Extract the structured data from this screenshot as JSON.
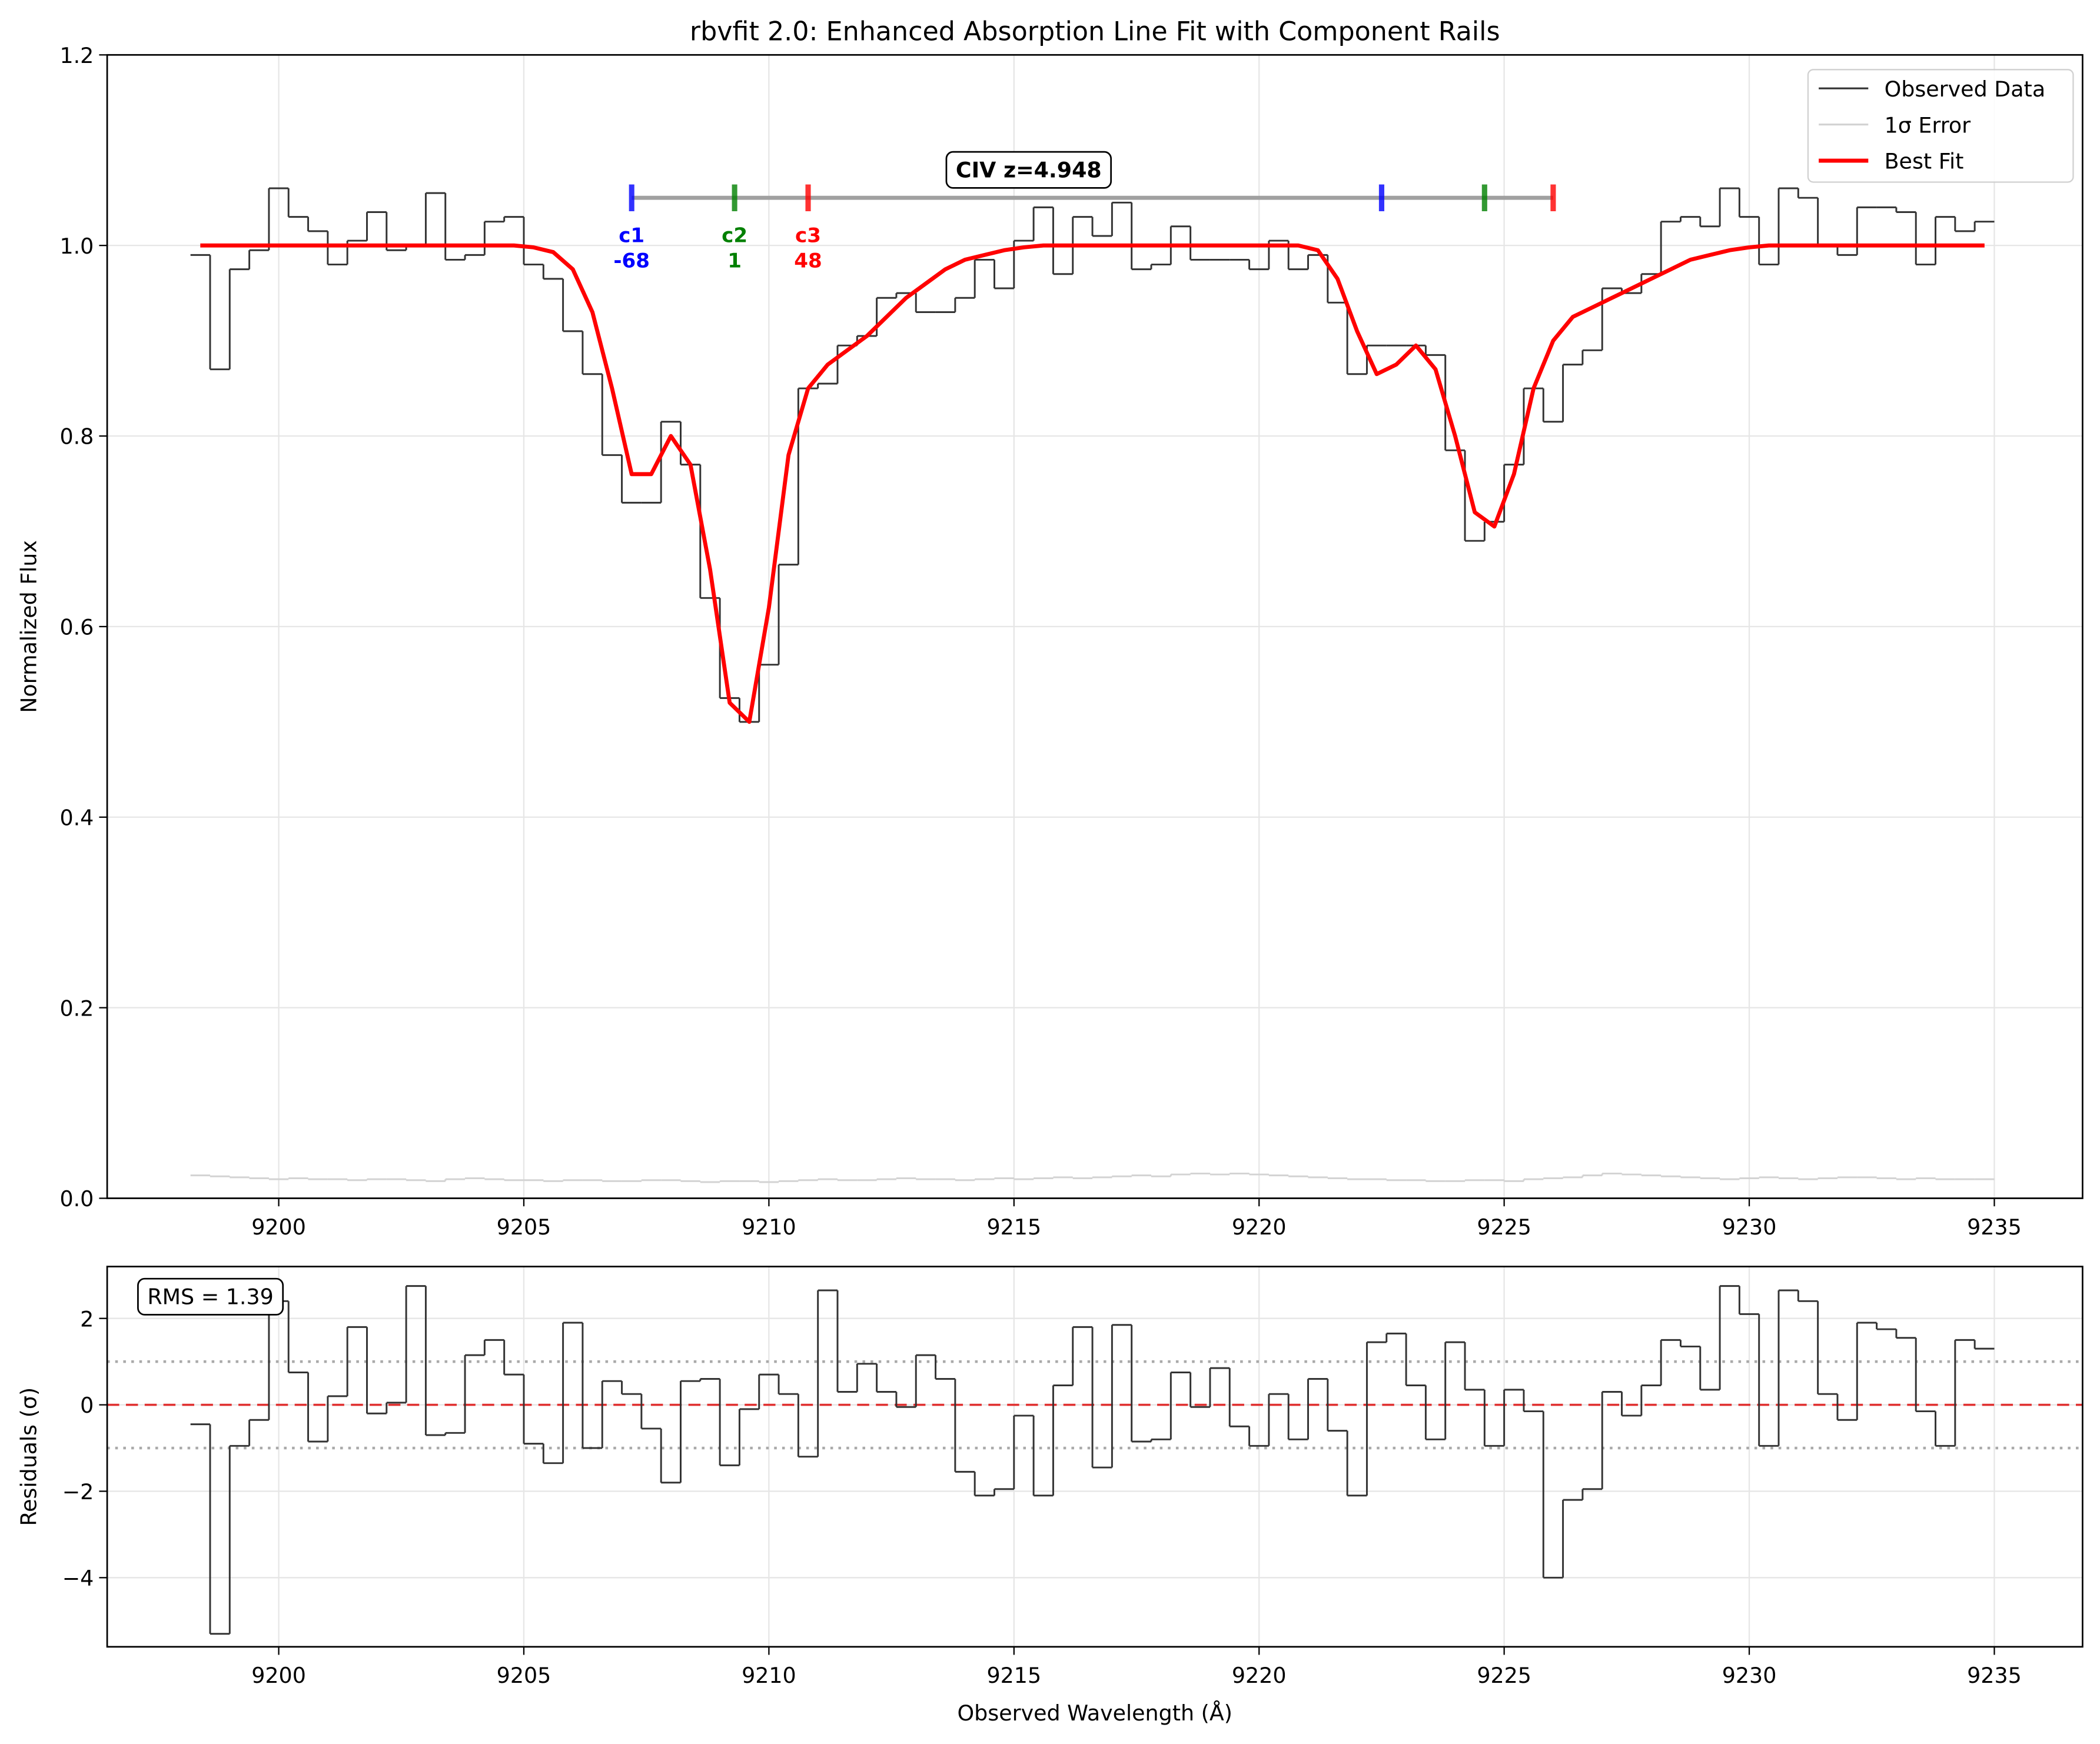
{
  "chart_data": [
    {
      "type": "line",
      "title": "rbvfit 2.0: Enhanced Absorption Line Fit with Component Rails",
      "ylabel": "Normalized Flux",
      "xlim": [
        9196.5,
        9236.8
      ],
      "xticks": [
        9200,
        9205,
        9210,
        9215,
        9220,
        9225,
        9230,
        9235
      ],
      "ylim": [
        0,
        1.2
      ],
      "yticks": [
        {
          "value": 0,
          "label": "0.0"
        },
        0.2,
        0.4,
        0.6,
        0.8,
        {
          "value": 1,
          "label": "1.0"
        },
        1.2
      ],
      "grid": true,
      "legend": "upper right",
      "x": [
        9198.4,
        9198.8,
        9199.2,
        9199.6,
        9200.0,
        9200.4,
        9200.8,
        9201.2,
        9201.6,
        9202.0,
        9202.4,
        9202.8,
        9203.2,
        9203.6,
        9204.0,
        9204.4,
        9204.8,
        9205.2,
        9205.6,
        9206.0,
        9206.4,
        9206.8,
        9207.2,
        9207.6,
        9208.0,
        9208.4,
        9208.8,
        9209.2,
        9209.6,
        9210.0,
        9210.4,
        9210.8,
        9211.2,
        9211.6,
        9212.0,
        9212.4,
        9212.8,
        9213.2,
        9213.6,
        9214.0,
        9214.4,
        9214.8,
        9215.2,
        9215.6,
        9216.0,
        9216.4,
        9216.8,
        9217.2,
        9217.6,
        9218.0,
        9218.4,
        9218.8,
        9219.2,
        9219.6,
        9220.0,
        9220.4,
        9220.8,
        9221.2,
        9221.6,
        9222.0,
        9222.4,
        9222.8,
        9223.2,
        9223.6,
        9224.0,
        9224.4,
        9224.8,
        9225.2,
        9225.6,
        9226.0,
        9226.4,
        9226.8,
        9227.2,
        9227.6,
        9228.0,
        9228.4,
        9228.8,
        9229.2,
        9229.6,
        9230.0,
        9230.4,
        9230.8,
        9231.2,
        9231.6,
        9232.0,
        9232.4,
        9232.8,
        9233.2,
        9233.6,
        9234.0,
        9234.4,
        9234.8
      ],
      "series": [
        {
          "name": "Observed Data",
          "color": "#333333",
          "style": "step",
          "values": [
            0.99,
            0.87,
            0.975,
            0.995,
            1.06,
            1.03,
            1.015,
            0.98,
            1.005,
            1.035,
            0.995,
            1.0,
            1.055,
            0.985,
            0.99,
            1.025,
            1.03,
            0.98,
            0.965,
            0.91,
            0.865,
            0.78,
            0.73,
            0.73,
            0.815,
            0.77,
            0.63,
            0.525,
            0.5,
            0.56,
            0.665,
            0.85,
            0.855,
            0.895,
            0.905,
            0.945,
            0.95,
            0.93,
            0.93,
            0.945,
            0.985,
            0.955,
            1.005,
            1.04,
            0.97,
            1.03,
            1.01,
            1.045,
            0.975,
            0.98,
            1.02,
            0.985,
            0.985,
            0.985,
            0.975,
            1.005,
            0.975,
            0.99,
            0.94,
            0.865,
            0.895,
            0.895,
            0.895,
            0.885,
            0.785,
            0.69,
            0.71,
            0.77,
            0.85,
            0.815,
            0.875,
            0.89,
            0.955,
            0.95,
            0.97,
            1.025,
            1.03,
            1.02,
            1.06,
            1.03,
            0.98,
            1.06,
            1.05,
            1.0,
            0.99,
            1.04,
            1.04,
            1.035,
            0.98,
            1.03,
            1.015,
            1.025
          ]
        },
        {
          "name": "1σ Error",
          "color": "#d3d3d3",
          "style": "step",
          "values": [
            0.024,
            0.023,
            0.022,
            0.021,
            0.02,
            0.021,
            0.02,
            0.02,
            0.019,
            0.02,
            0.02,
            0.019,
            0.018,
            0.02,
            0.021,
            0.02,
            0.019,
            0.019,
            0.018,
            0.019,
            0.019,
            0.018,
            0.018,
            0.019,
            0.019,
            0.018,
            0.017,
            0.018,
            0.018,
            0.017,
            0.018,
            0.019,
            0.02,
            0.019,
            0.019,
            0.02,
            0.021,
            0.02,
            0.02,
            0.019,
            0.02,
            0.021,
            0.02,
            0.021,
            0.022,
            0.021,
            0.022,
            0.023,
            0.024,
            0.023,
            0.025,
            0.026,
            0.025,
            0.026,
            0.025,
            0.024,
            0.023,
            0.022,
            0.021,
            0.02,
            0.02,
            0.019,
            0.019,
            0.018,
            0.018,
            0.019,
            0.019,
            0.018,
            0.02,
            0.021,
            0.022,
            0.024,
            0.026,
            0.025,
            0.024,
            0.023,
            0.022,
            0.021,
            0.02,
            0.021,
            0.022,
            0.021,
            0.02,
            0.021,
            0.022,
            0.022,
            0.021,
            0.02,
            0.021,
            0.02,
            0.02,
            0.02
          ]
        },
        {
          "name": "Best Fit",
          "color": "#ff0000",
          "style": "line",
          "values": [
            1.0,
            1.0,
            1.0,
            1.0,
            1.0,
            1.0,
            1.0,
            1.0,
            1.0,
            1.0,
            1.0,
            1.0,
            1.0,
            1.0,
            1.0,
            1.0,
            1.0,
            0.998,
            0.993,
            0.975,
            0.93,
            0.85,
            0.76,
            0.76,
            0.8,
            0.77,
            0.66,
            0.52,
            0.5,
            0.62,
            0.78,
            0.85,
            0.875,
            0.89,
            0.905,
            0.925,
            0.945,
            0.96,
            0.975,
            0.985,
            0.99,
            0.995,
            0.998,
            1.0,
            1.0,
            1.0,
            1.0,
            1.0,
            1.0,
            1.0,
            1.0,
            1.0,
            1.0,
            1.0,
            1.0,
            1.0,
            1.0,
            0.995,
            0.965,
            0.91,
            0.865,
            0.875,
            0.895,
            0.87,
            0.8,
            0.72,
            0.705,
            0.76,
            0.85,
            0.9,
            0.925,
            0.935,
            0.945,
            0.955,
            0.965,
            0.975,
            0.985,
            0.99,
            0.995,
            0.998,
            1.0,
            1.0,
            1.0,
            1.0,
            1.0,
            1.0,
            1.0,
            1.0,
            1.0,
            1.0,
            1.0,
            1.0
          ]
        }
      ],
      "rail_y": 1.05,
      "components": [
        {
          "label": "c1",
          "velocity": -68,
          "color": "#0000ff",
          "positions": [
            9207.2,
            9222.5
          ]
        },
        {
          "label": "c2",
          "velocity": 1,
          "color": "#008000",
          "positions": [
            9209.3,
            9224.6
          ]
        },
        {
          "label": "c3",
          "velocity": 48,
          "color": "#ff0000",
          "positions": [
            9210.8,
            9226.0
          ]
        }
      ],
      "annotation": {
        "text": "CIV z=4.948",
        "x": 9215.3,
        "y": 1.08
      }
    },
    {
      "type": "line",
      "ylabel": "Residuals (σ)",
      "xlabel": "Observed Wavelength (Å)",
      "xlim": [
        9196.5,
        9236.8
      ],
      "xticks": [
        9200,
        9205,
        9210,
        9215,
        9220,
        9225,
        9230,
        9235
      ],
      "ylim": [
        -5.6,
        3.2
      ],
      "yticks": [
        {
          "value": -4,
          "label": "−4"
        },
        {
          "value": -2,
          "label": "−2"
        },
        0,
        2
      ],
      "grid": true,
      "x": [
        9198.4,
        9198.8,
        9199.2,
        9199.6,
        9200.0,
        9200.4,
        9200.8,
        9201.2,
        9201.6,
        9202.0,
        9202.4,
        9202.8,
        9203.2,
        9203.6,
        9204.0,
        9204.4,
        9204.8,
        9205.2,
        9205.6,
        9206.0,
        9206.4,
        9206.8,
        9207.2,
        9207.6,
        9208.0,
        9208.4,
        9208.8,
        9209.2,
        9209.6,
        9210.0,
        9210.4,
        9210.8,
        9211.2,
        9211.6,
        9212.0,
        9212.4,
        9212.8,
        9213.2,
        9213.6,
        9214.0,
        9214.4,
        9214.8,
        9215.2,
        9215.6,
        9216.0,
        9216.4,
        9216.8,
        9217.2,
        9217.6,
        9218.0,
        9218.4,
        9218.8,
        9219.2,
        9219.6,
        9220.0,
        9220.4,
        9220.8,
        9221.2,
        9221.6,
        9222.0,
        9222.4,
        9222.8,
        9223.2,
        9223.6,
        9224.0,
        9224.4,
        9224.8,
        9225.2,
        9225.6,
        9226.0,
        9226.4,
        9226.8,
        9227.2,
        9227.6,
        9228.0,
        9228.4,
        9228.8,
        9229.2,
        9229.6,
        9230.0,
        9230.4,
        9230.8,
        9231.2,
        9231.6,
        9232.0,
        9232.4,
        9232.8,
        9233.2,
        9233.6,
        9234.0,
        9234.4,
        9234.8
      ],
      "series": [
        {
          "color": "#333333",
          "style": "step",
          "values": [
            -0.45,
            -5.3,
            -0.95,
            -0.35,
            2.4,
            0.75,
            -0.85,
            0.2,
            1.8,
            -0.2,
            0.05,
            2.75,
            -0.7,
            -0.65,
            1.15,
            1.5,
            0.7,
            -0.9,
            -1.35,
            1.9,
            -1.0,
            0.55,
            0.25,
            -0.55,
            -1.8,
            0.55,
            0.6,
            -1.4,
            -0.1,
            0.7,
            0.25,
            -1.2,
            2.65,
            0.3,
            0.95,
            0.3,
            -0.05,
            1.15,
            0.6,
            -1.55,
            -2.1,
            -1.95,
            -0.25,
            -2.1,
            0.45,
            1.8,
            -1.45,
            1.85,
            -0.85,
            -0.8,
            0.75,
            -0.05,
            0.85,
            -0.5,
            -0.95,
            0.25,
            -0.8,
            0.6,
            -0.6,
            -2.1,
            1.45,
            1.65,
            0.45,
            -0.8,
            1.45,
            0.35,
            -0.95,
            0.35,
            -0.15,
            -4.0,
            -2.2,
            -1.95,
            0.3,
            -0.25,
            0.45,
            1.5,
            1.35,
            0.35,
            2.75,
            2.1,
            -0.95,
            2.65,
            2.4,
            0.25,
            -0.35,
            1.9,
            1.75,
            1.55,
            -0.15,
            -0.95,
            1.5,
            1.3
          ]
        }
      ],
      "hlines": [
        {
          "y": 0,
          "color": "#e03030",
          "style": "dashed"
        },
        {
          "y": 1,
          "color": "#aaaaaa",
          "style": "dotted"
        },
        {
          "y": -1,
          "color": "#aaaaaa",
          "style": "dotted"
        }
      ],
      "text": "RMS = 1.39"
    }
  ]
}
